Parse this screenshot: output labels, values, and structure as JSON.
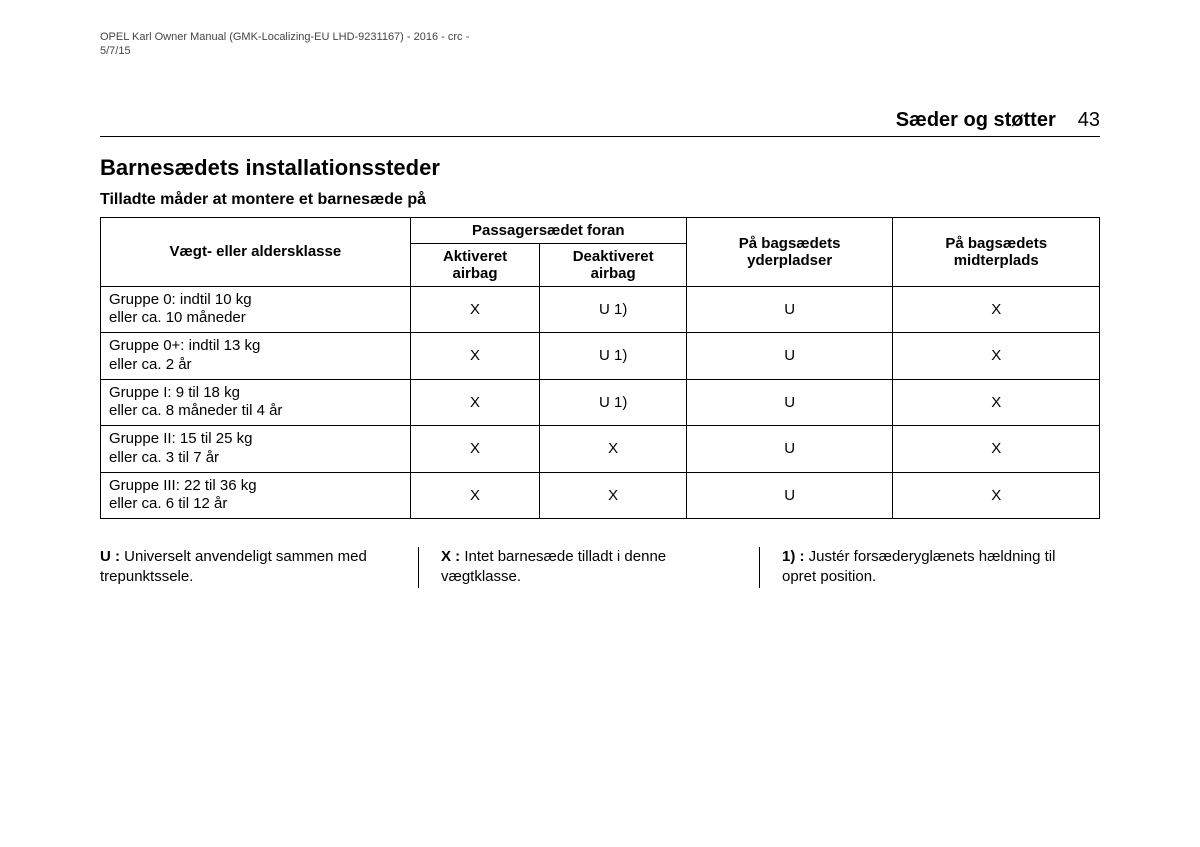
{
  "meta": {
    "line1": "OPEL Karl Owner Manual (GMK-Localizing-EU LHD-9231167) - 2016 - crc -",
    "line2": "5/7/15"
  },
  "header": {
    "section": "Sæder og støtter",
    "page_number": "43"
  },
  "headings": {
    "main": "Barnesædets installationssteder",
    "sub": "Tilladte måder at montere et barnesæde på"
  },
  "table": {
    "headers": {
      "weight_class": "Vægt- eller aldersklasse",
      "front_passenger": "Passagersædet foran",
      "airbag_on": "Aktiveret airbag",
      "airbag_off": "Deaktiveret airbag",
      "rear_outer": "På bagsædets yderpladser",
      "rear_center": "På bagsædets midterplads"
    },
    "rows": [
      {
        "label_l1": "Gruppe 0: indtil 10 kg",
        "label_l2": "eller ca. 10 måneder",
        "c1": "X",
        "c2": "U 1)",
        "c3": "U",
        "c4": "X"
      },
      {
        "label_l1": "Gruppe 0+: indtil 13 kg",
        "label_l2": "eller ca. 2 år",
        "c1": "X",
        "c2": "U 1)",
        "c3": "U",
        "c4": "X"
      },
      {
        "label_l1": "Gruppe I: 9 til 18 kg",
        "label_l2": "eller ca. 8 måneder til 4 år",
        "c1": "X",
        "c2": "U 1)",
        "c3": "U",
        "c4": "X"
      },
      {
        "label_l1": "Gruppe II: 15 til 25 kg",
        "label_l2": "eller ca. 3 til 7 år",
        "c1": "X",
        "c2": "X",
        "c3": "U",
        "c4": "X"
      },
      {
        "label_l1": "Gruppe III: 22 til 36 kg",
        "label_l2": "eller ca. 6 til 12 år",
        "c1": "X",
        "c2": "X",
        "c3": "U",
        "c4": "X"
      }
    ]
  },
  "legend": {
    "u_key": "U :",
    "u_text": " Universelt anvendeligt sammen med trepunktssele.",
    "x_key": "X :",
    "x_text": " Intet barnesæde tilladt i denne vægtklasse.",
    "one_key": "1) :",
    "one_text": " Justér forsæderyglænets hældning til opret position."
  }
}
